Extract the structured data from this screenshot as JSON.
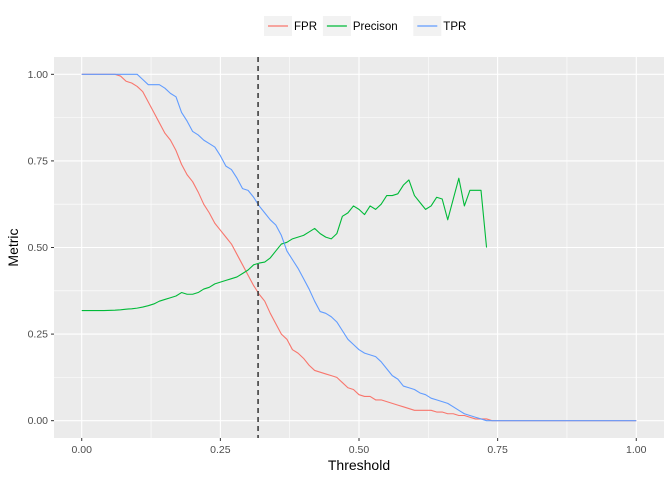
{
  "chart_data": {
    "type": "line",
    "xlabel": "Threshold",
    "ylabel": "Metric",
    "xlim": [
      -0.05,
      1.05
    ],
    "ylim": [
      -0.05,
      1.05
    ],
    "x_ticks": [
      0,
      0.25,
      0.5,
      0.75,
      1
    ],
    "x_tick_labels": [
      "0.00",
      "0.25",
      "0.50",
      "0.75",
      "1.00"
    ],
    "y_ticks": [
      0,
      0.25,
      0.5,
      0.75,
      1
    ],
    "y_tick_labels": [
      "0.00",
      "0.25",
      "0.50",
      "0.75",
      "1.00"
    ],
    "grid": true,
    "legend_position": "top",
    "vline": {
      "x": 0.318,
      "style": "dashed",
      "color": "#333333"
    },
    "series": [
      {
        "name": "FPR",
        "color": "#F8766D",
        "x": [
          0,
          0.01,
          0.02,
          0.03,
          0.04,
          0.05,
          0.06,
          0.07,
          0.08,
          0.09,
          0.1,
          0.11,
          0.12,
          0.13,
          0.14,
          0.15,
          0.16,
          0.17,
          0.18,
          0.19,
          0.2,
          0.21,
          0.22,
          0.23,
          0.24,
          0.25,
          0.26,
          0.27,
          0.28,
          0.29,
          0.3,
          0.31,
          0.32,
          0.33,
          0.34,
          0.35,
          0.36,
          0.37,
          0.38,
          0.39,
          0.4,
          0.41,
          0.42,
          0.43,
          0.44,
          0.45,
          0.46,
          0.47,
          0.48,
          0.49,
          0.5,
          0.51,
          0.52,
          0.53,
          0.54,
          0.55,
          0.56,
          0.57,
          0.58,
          0.59,
          0.6,
          0.61,
          0.62,
          0.63,
          0.64,
          0.65,
          0.66,
          0.67,
          0.68,
          0.69,
          0.7,
          0.71,
          0.72,
          0.73,
          0.74,
          0.75,
          0.76,
          0.78,
          0.8,
          0.85,
          0.9,
          0.95,
          1.0
        ],
        "values": [
          1.0,
          1.0,
          1.0,
          1.0,
          1.0,
          1.0,
          1.0,
          0.995,
          0.98,
          0.975,
          0.965,
          0.95,
          0.92,
          0.89,
          0.86,
          0.83,
          0.81,
          0.78,
          0.74,
          0.71,
          0.69,
          0.66,
          0.625,
          0.6,
          0.57,
          0.55,
          0.53,
          0.51,
          0.48,
          0.45,
          0.42,
          0.39,
          0.365,
          0.345,
          0.31,
          0.28,
          0.25,
          0.235,
          0.205,
          0.195,
          0.18,
          0.16,
          0.145,
          0.14,
          0.135,
          0.13,
          0.125,
          0.11,
          0.095,
          0.09,
          0.075,
          0.07,
          0.07,
          0.06,
          0.06,
          0.055,
          0.05,
          0.045,
          0.04,
          0.035,
          0.03,
          0.03,
          0.03,
          0.03,
          0.025,
          0.025,
          0.02,
          0.02,
          0.015,
          0.015,
          0.01,
          0.005,
          0.005,
          0.005,
          0.0,
          0.0,
          0.0,
          0.0,
          0.0,
          0.0,
          0.0,
          0.0,
          0.0
        ]
      },
      {
        "name": "Precison",
        "color": "#00BA38",
        "x": [
          0,
          0.02,
          0.04,
          0.06,
          0.07,
          0.08,
          0.09,
          0.1,
          0.11,
          0.12,
          0.13,
          0.14,
          0.15,
          0.16,
          0.17,
          0.18,
          0.19,
          0.2,
          0.21,
          0.22,
          0.23,
          0.24,
          0.25,
          0.26,
          0.27,
          0.28,
          0.29,
          0.3,
          0.31,
          0.32,
          0.33,
          0.34,
          0.35,
          0.36,
          0.37,
          0.38,
          0.39,
          0.4,
          0.41,
          0.42,
          0.43,
          0.44,
          0.45,
          0.46,
          0.47,
          0.48,
          0.49,
          0.5,
          0.51,
          0.52,
          0.53,
          0.54,
          0.55,
          0.56,
          0.57,
          0.58,
          0.59,
          0.6,
          0.61,
          0.62,
          0.63,
          0.64,
          0.65,
          0.66,
          0.67,
          0.68,
          0.69,
          0.7,
          0.71,
          0.72,
          0.73
        ],
        "values": [
          0.318,
          0.318,
          0.318,
          0.319,
          0.32,
          0.322,
          0.323,
          0.325,
          0.328,
          0.332,
          0.337,
          0.345,
          0.35,
          0.355,
          0.36,
          0.37,
          0.365,
          0.365,
          0.37,
          0.38,
          0.385,
          0.395,
          0.4,
          0.405,
          0.41,
          0.415,
          0.425,
          0.435,
          0.45,
          0.455,
          0.458,
          0.47,
          0.49,
          0.51,
          0.515,
          0.525,
          0.53,
          0.535,
          0.545,
          0.555,
          0.54,
          0.53,
          0.525,
          0.54,
          0.59,
          0.6,
          0.62,
          0.61,
          0.595,
          0.62,
          0.61,
          0.625,
          0.65,
          0.65,
          0.655,
          0.68,
          0.695,
          0.65,
          0.63,
          0.61,
          0.62,
          0.645,
          0.64,
          0.58,
          0.64,
          0.7,
          0.62,
          0.665,
          0.665,
          0.665,
          0.5
        ]
      },
      {
        "name": "TPR",
        "color": "#619CFF",
        "x": [
          0,
          0.02,
          0.04,
          0.06,
          0.08,
          0.1,
          0.11,
          0.12,
          0.13,
          0.14,
          0.15,
          0.16,
          0.17,
          0.18,
          0.19,
          0.2,
          0.21,
          0.22,
          0.23,
          0.24,
          0.25,
          0.26,
          0.27,
          0.28,
          0.29,
          0.3,
          0.31,
          0.32,
          0.33,
          0.34,
          0.35,
          0.36,
          0.37,
          0.38,
          0.39,
          0.4,
          0.41,
          0.42,
          0.43,
          0.44,
          0.45,
          0.46,
          0.47,
          0.48,
          0.49,
          0.5,
          0.51,
          0.52,
          0.53,
          0.54,
          0.55,
          0.56,
          0.57,
          0.58,
          0.59,
          0.6,
          0.61,
          0.62,
          0.63,
          0.64,
          0.65,
          0.66,
          0.67,
          0.68,
          0.69,
          0.7,
          0.71,
          0.72,
          0.73,
          0.74,
          0.75,
          0.8,
          0.85,
          0.9,
          0.95,
          1.0
        ],
        "values": [
          1.0,
          1.0,
          1.0,
          1.0,
          1.0,
          1.0,
          0.985,
          0.97,
          0.97,
          0.97,
          0.96,
          0.945,
          0.935,
          0.89,
          0.865,
          0.835,
          0.825,
          0.81,
          0.8,
          0.79,
          0.765,
          0.735,
          0.725,
          0.7,
          0.67,
          0.665,
          0.645,
          0.62,
          0.6,
          0.58,
          0.565,
          0.535,
          0.49,
          0.465,
          0.44,
          0.41,
          0.38,
          0.345,
          0.315,
          0.31,
          0.3,
          0.285,
          0.26,
          0.235,
          0.22,
          0.205,
          0.195,
          0.19,
          0.185,
          0.17,
          0.15,
          0.13,
          0.12,
          0.1,
          0.095,
          0.09,
          0.08,
          0.075,
          0.065,
          0.06,
          0.055,
          0.05,
          0.04,
          0.03,
          0.02,
          0.015,
          0.01,
          0.005,
          0.0,
          0.0,
          0.0,
          0.0,
          0.0,
          0.0,
          0.0,
          0.0
        ]
      }
    ]
  }
}
